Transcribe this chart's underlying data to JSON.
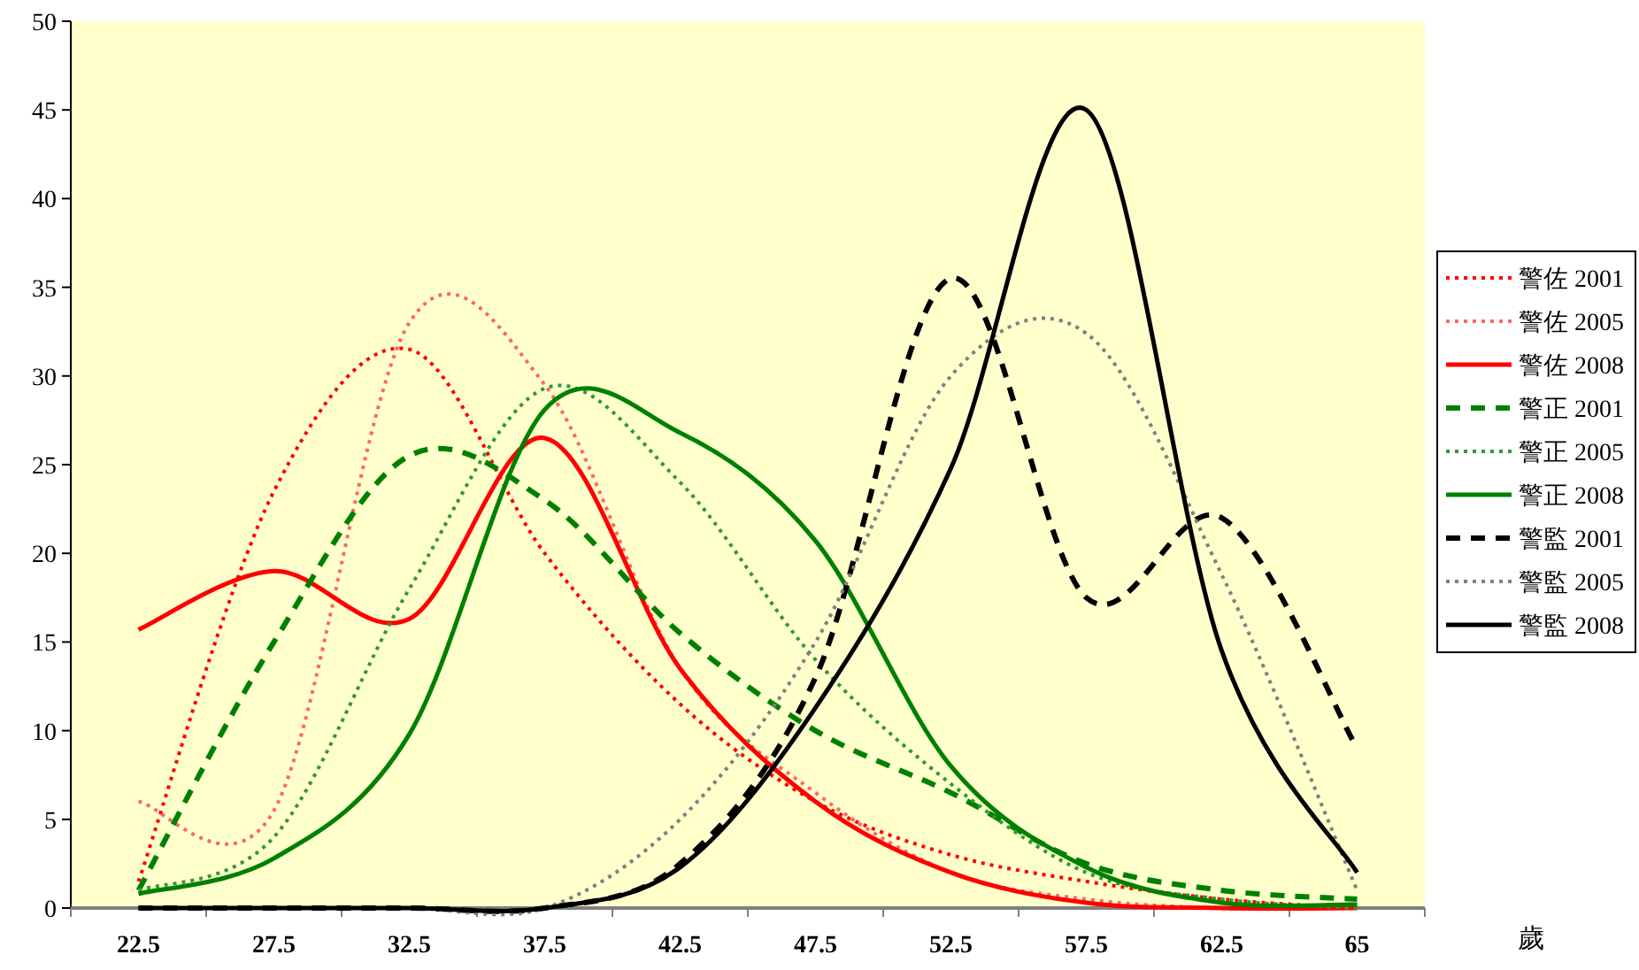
{
  "chart_data": {
    "type": "line",
    "xlabel": "歲",
    "categories": [
      "22.5",
      "27.5",
      "32.5",
      "37.5",
      "42.5",
      "47.5",
      "52.5",
      "57.5",
      "62.5",
      "65"
    ],
    "ylim": [
      0,
      50
    ],
    "yticks": [
      0,
      5,
      10,
      15,
      20,
      25,
      30,
      35,
      40,
      45,
      50
    ],
    "grid": false,
    "legend": "right",
    "marker": "none",
    "series": [
      {
        "name": "警佐 2001",
        "color": "#ff0000",
        "line_style": "dotted",
        "values": [
          1.5,
          23.5,
          31.5,
          20,
          11.5,
          6,
          3,
          1.5,
          0.5,
          0
        ]
      },
      {
        "name": "警佐 2005",
        "color": "#ff6666",
        "line_style": "dotted",
        "values": [
          6,
          5.5,
          33,
          29.5,
          13.5,
          6.5,
          2,
          0.5,
          0,
          0
        ]
      },
      {
        "name": "警佐 2008",
        "color": "#ff0000",
        "line_style": "solid",
        "values": [
          15.7,
          19,
          16.3,
          26.5,
          13.5,
          6,
          2,
          0.3,
          0,
          0
        ]
      },
      {
        "name": "警正 2001",
        "color": "#008000",
        "line_style": "dashed",
        "values": [
          1,
          15,
          25.5,
          23,
          15.5,
          10,
          6.5,
          2.5,
          1,
          0.5
        ]
      },
      {
        "name": "警正 2005",
        "color": "#339933",
        "line_style": "dotted",
        "values": [
          1,
          4,
          18,
          29.3,
          24,
          14,
          7,
          2,
          0.5,
          0
        ]
      },
      {
        "name": "警正 2008",
        "color": "#008000",
        "line_style": "solid",
        "values": [
          0.8,
          2.8,
          9.8,
          28.1,
          26.8,
          20.7,
          8,
          2.3,
          0.3,
          0.2
        ]
      },
      {
        "name": "警監 2001",
        "color": "#000000",
        "line_style": "dashed",
        "values": [
          0,
          0,
          0,
          0,
          2.5,
          13,
          35.5,
          17.5,
          22,
          9
        ]
      },
      {
        "name": "警監 2005",
        "color": "#808080",
        "line_style": "dotted",
        "values": [
          0,
          0,
          0,
          0,
          5,
          15,
          30,
          32.4,
          18.8,
          1
        ]
      },
      {
        "name": "警監 2008",
        "color": "#000000",
        "line_style": "solid",
        "values": [
          0,
          0,
          0,
          0,
          2.3,
          11.3,
          24.8,
          45,
          14.5,
          2
        ]
      }
    ]
  }
}
